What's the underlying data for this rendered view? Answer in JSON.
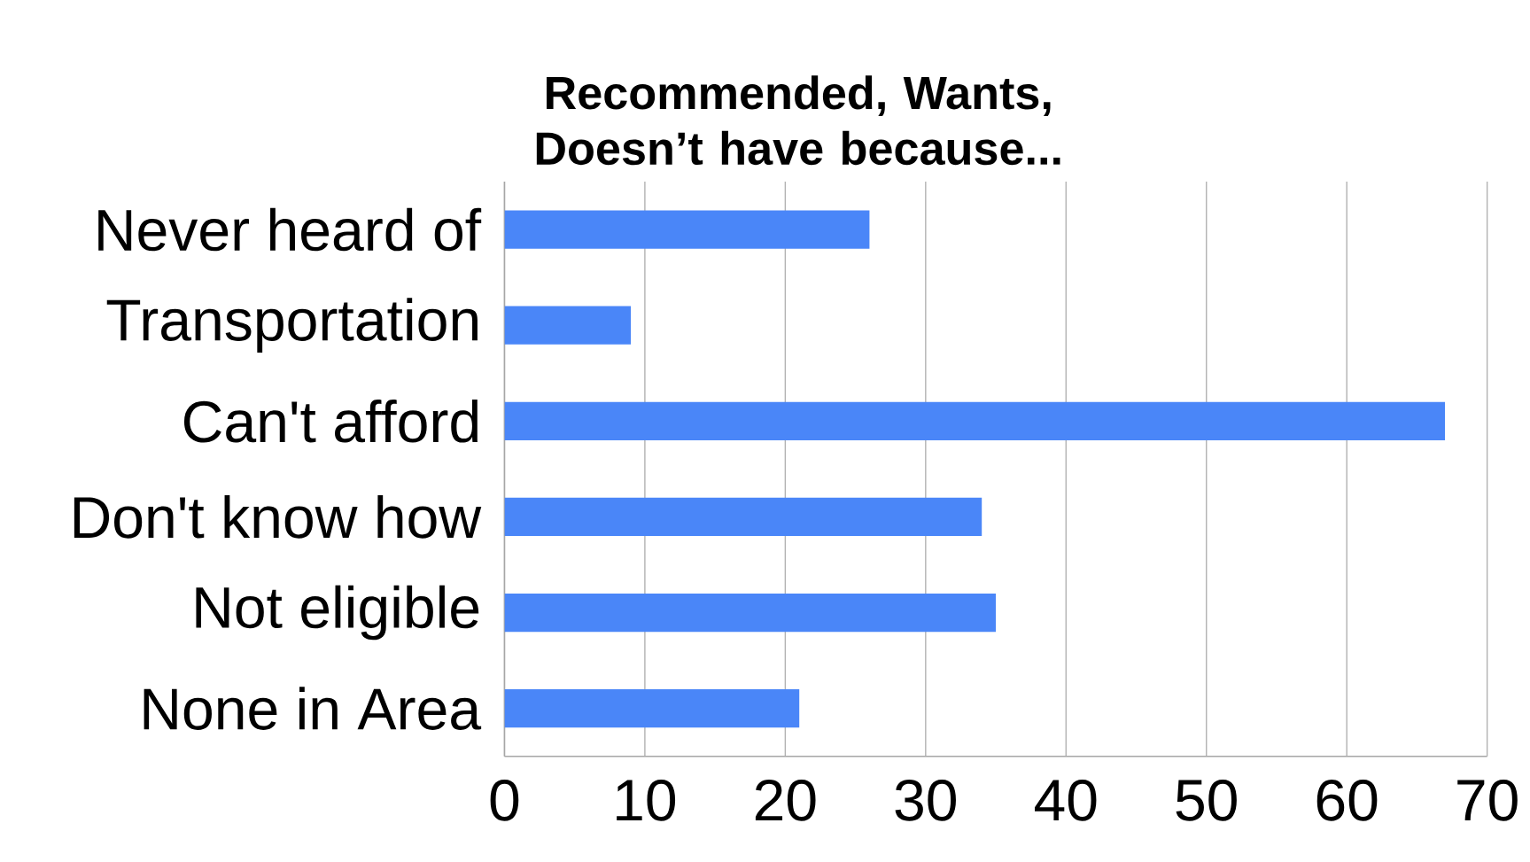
{
  "chart_data": {
    "type": "bar",
    "orientation": "horizontal",
    "title": "Recommended, Wants, Doesn’t have because...",
    "categories": [
      "Never heard of",
      "Transportation",
      "Can't afford",
      "Don't know how",
      "Not eligible",
      "None in Area"
    ],
    "values": [
      26,
      9,
      67,
      34,
      35,
      21
    ],
    "color": "#4a86f8",
    "xlim": [
      0,
      70
    ],
    "xticks": [
      0,
      10,
      20,
      30,
      40,
      50,
      60,
      70
    ],
    "grid": "x"
  }
}
